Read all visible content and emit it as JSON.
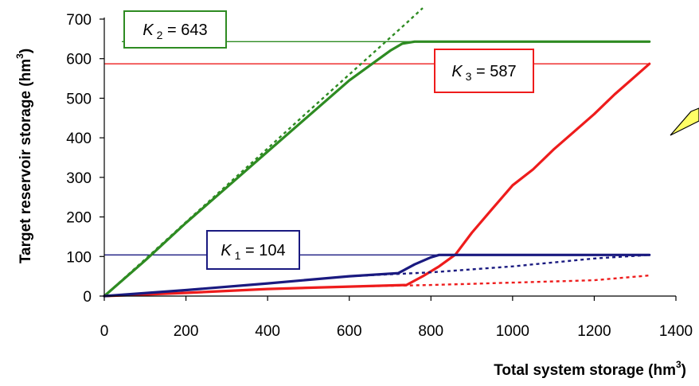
{
  "chart_data": {
    "type": "line",
    "xlabel": "Total system storage (hm",
    "xlabel_sup": "3",
    "xlabel_close": ")",
    "ylabel": "Target reservoir storage (hm",
    "ylabel_sup": "3",
    "ylabel_close": ")",
    "xlim": [
      0,
      1400
    ],
    "ylim": [
      0,
      700
    ],
    "xticks": [
      "0",
      "200",
      "400",
      "600",
      "800",
      "1000",
      "1200",
      "1400"
    ],
    "yticks": [
      "0",
      "100",
      "200",
      "300",
      "400",
      "500",
      "600",
      "700"
    ],
    "grid": false,
    "colors": {
      "K1": "#1a1a80",
      "K2": "#2e8b22",
      "K3": "#ee1c1c"
    },
    "capacities": [
      {
        "id": "K1",
        "symbol": "K",
        "subscript": "1",
        "eq": " = 104",
        "value": 104,
        "color": "#1a1a80"
      },
      {
        "id": "K2",
        "symbol": "K",
        "subscript": "2",
        "eq": " = 643",
        "value": 643,
        "color": "#2e8b22"
      },
      {
        "id": "K3",
        "symbol": "K",
        "subscript": "3",
        "eq": " = 587",
        "value": 587,
        "color": "#ee1c1c"
      }
    ],
    "series": [
      {
        "id": "K2",
        "style": "solid",
        "color": "#2e8b22",
        "x": [
          0,
          100,
          200,
          300,
          400,
          500,
          600,
          700,
          730,
          760,
          1335
        ],
        "y": [
          0,
          90,
          185,
          275,
          365,
          455,
          545,
          620,
          638,
          643,
          643
        ]
      },
      {
        "id": "K2",
        "style": "dotted",
        "color": "#2e8b22",
        "x": [
          0,
          100,
          200,
          300,
          400,
          500,
          600,
          700,
          740,
          780
        ],
        "y": [
          0,
          93,
          187,
          280,
          373,
          467,
          560,
          653,
          690,
          728
        ]
      },
      {
        "id": "K3",
        "style": "solid",
        "color": "#ee1c1c",
        "x": [
          0,
          200,
          400,
          600,
          740,
          780,
          820,
          860,
          900,
          950,
          1000,
          1050,
          1100,
          1150,
          1200,
          1250,
          1300,
          1335
        ],
        "y": [
          0,
          8,
          18,
          24,
          28,
          50,
          75,
          105,
          160,
          220,
          280,
          320,
          370,
          415,
          460,
          510,
          555,
          587
        ]
      },
      {
        "id": "K3",
        "style": "dotted",
        "color": "#ee1c1c",
        "x": [
          0,
          200,
          400,
          600,
          800,
          1000,
          1200,
          1335
        ],
        "y": [
          0,
          8,
          18,
          24,
          28,
          34,
          40,
          52
        ]
      },
      {
        "id": "K1",
        "style": "solid",
        "color": "#1a1a80",
        "x": [
          0,
          200,
          400,
          600,
          720,
          760,
          800,
          820,
          1335
        ],
        "y": [
          0,
          15,
          32,
          50,
          58,
          80,
          98,
          104,
          104
        ]
      },
      {
        "id": "K1",
        "style": "dotted",
        "color": "#1a1a80",
        "x": [
          0,
          200,
          400,
          600,
          800,
          1000,
          1200,
          1335
        ],
        "y": [
          0,
          15,
          32,
          50,
          60,
          75,
          95,
          104
        ]
      }
    ]
  }
}
